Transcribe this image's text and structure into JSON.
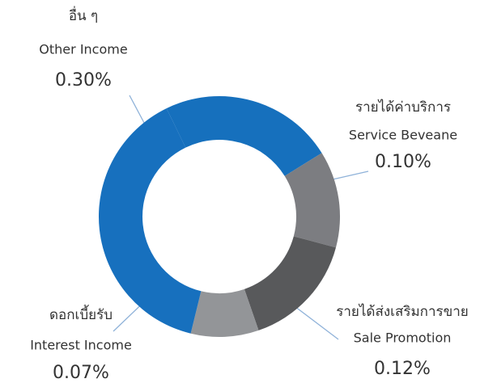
{
  "chart_data": {
    "type": "donut",
    "categories": [
      null,
      {
        "th": "รายได้ค่าบริการ",
        "en": "Service Beveane"
      },
      {
        "th": "รายได้ส่งเสริมการขาย",
        "en": "Sale Promotion"
      },
      {
        "th": "ดอกเบี้ยรับ",
        "en": "Interest Income"
      },
      {
        "th": "อื่น ๆ",
        "en": "Other Income"
      }
    ],
    "values": [
      0.18,
      0.1,
      0.12,
      0.07,
      0.3
    ],
    "value_labels": [
      null,
      "0.10%",
      "0.12%",
      "0.07%",
      "0.30%"
    ],
    "colors": [
      "#1670bd",
      "#7c7d81",
      "#58595b",
      "#939598",
      "#1770be"
    ]
  }
}
